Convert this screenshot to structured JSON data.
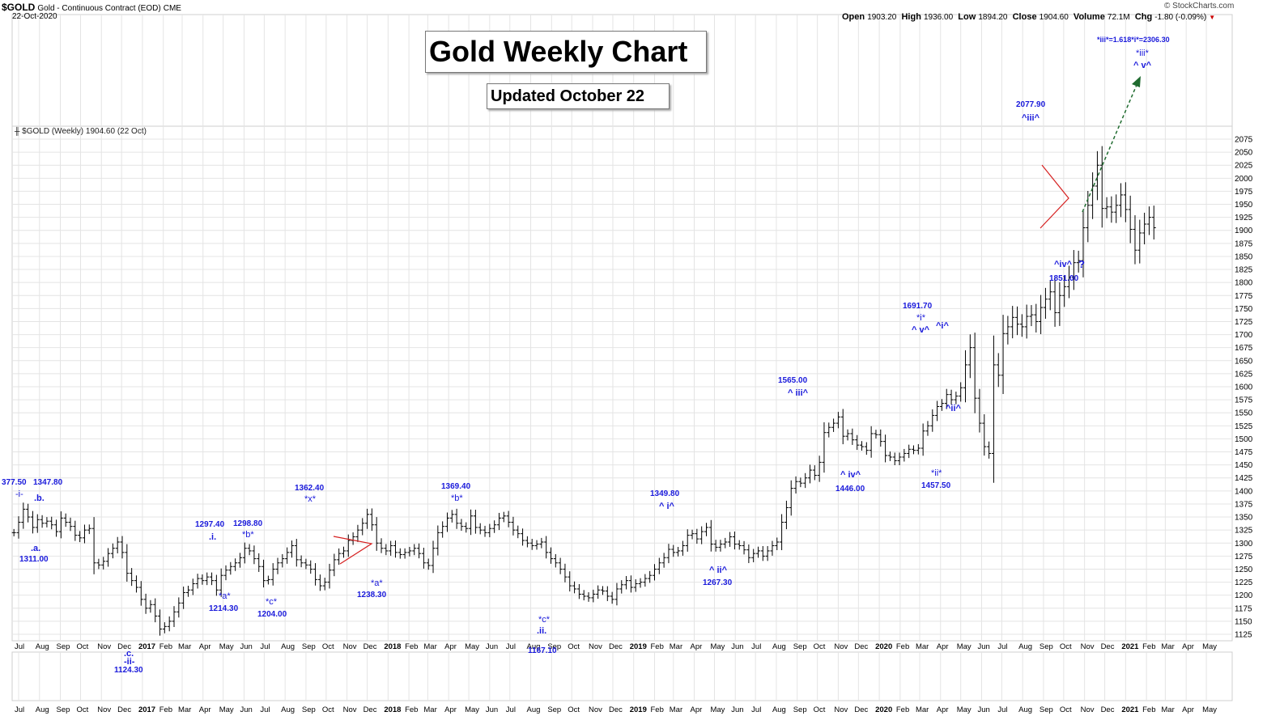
{
  "header": {
    "symbol": "$GOLD",
    "description": "Gold - Continuous Contract (EOD)",
    "exchange": "CME",
    "date": "22-Oct-2020",
    "open_label": "Open",
    "open": "1903.20",
    "high_label": "High",
    "high": "1936.00",
    "low_label": "Low",
    "low": "1894.20",
    "close_label": "Close",
    "close": "1904.60",
    "volume_label": "Volume",
    "volume": "72.1M",
    "chg_label": "Chg",
    "chg": "-1.80 (-0.09%)",
    "watermark": "© StockCharts.com",
    "legend": "$GOLD (Weekly) 1904.60 (22 Oct)"
  },
  "title_box": "Gold Weekly Chart",
  "updated_box": "Updated October 22",
  "colors": {
    "annotation": "#1a1adb",
    "bars": "#000000",
    "triangle": "#d62020",
    "projection": "#1f6b2f",
    "grid": "#e4e4e4"
  },
  "chart_data": {
    "type": "ohlc",
    "title": "Gold Weekly Chart",
    "ylim": [
      1110,
      2100
    ],
    "yticks": [
      1125,
      1150,
      1175,
      1200,
      1225,
      1250,
      1275,
      1300,
      1325,
      1350,
      1375,
      1400,
      1425,
      1450,
      1475,
      1500,
      1525,
      1550,
      1575,
      1600,
      1625,
      1650,
      1675,
      1700,
      1725,
      1750,
      1775,
      1800,
      1825,
      1850,
      1875,
      1900,
      1925,
      1950,
      1975,
      2000,
      2025,
      2050,
      2075
    ],
    "xlabels": [
      "Jul",
      "Aug",
      "Sep",
      "Oct",
      "Nov",
      "Dec",
      "2017",
      "Feb",
      "Mar",
      "Apr",
      "May",
      "Jun",
      "Jul",
      "Aug",
      "Sep",
      "Oct",
      "Nov",
      "Dec",
      "2018",
      "Feb",
      "Mar",
      "Apr",
      "May",
      "Jun",
      "Jul",
      "Aug",
      "Sep",
      "Oct",
      "Nov",
      "Dec",
      "2019",
      "Feb",
      "Mar",
      "Apr",
      "May",
      "Jun",
      "Jul",
      "Aug",
      "Sep",
      "Oct",
      "Nov",
      "Dec",
      "2020",
      "Feb",
      "Mar",
      "Apr",
      "May",
      "Jun",
      "Jul",
      "Aug",
      "Sep",
      "Oct",
      "Nov",
      "Dec",
      "2021",
      "Feb",
      "Mar",
      "Apr",
      "May"
    ],
    "x_start": "2016-07-01",
    "bars_week_start": "2016-06-24",
    "closes": [
      1320,
      1340,
      1365,
      1350,
      1330,
      1345,
      1338,
      1342,
      1335,
      1322,
      1348,
      1340,
      1332,
      1315,
      1310,
      1325,
      1328,
      1262,
      1258,
      1265,
      1280,
      1290,
      1302,
      1282,
      1242,
      1228,
      1215,
      1192,
      1175,
      1182,
      1160,
      1135,
      1140,
      1150,
      1168,
      1185,
      1205,
      1210,
      1222,
      1232,
      1228,
      1235,
      1228,
      1210,
      1238,
      1248,
      1255,
      1262,
      1272,
      1290,
      1285,
      1270,
      1255,
      1228,
      1230,
      1250,
      1262,
      1270,
      1282,
      1295,
      1268,
      1262,
      1258,
      1250,
      1230,
      1218,
      1225,
      1248,
      1268,
      1280,
      1285,
      1305,
      1312,
      1325,
      1338,
      1355,
      1335,
      1300,
      1290,
      1285,
      1295,
      1282,
      1278,
      1282,
      1285,
      1290,
      1280,
      1262,
      1257,
      1290,
      1320,
      1332,
      1348,
      1355,
      1338,
      1332,
      1328,
      1352,
      1330,
      1325,
      1320,
      1328,
      1335,
      1348,
      1352,
      1340,
      1325,
      1318,
      1305,
      1300,
      1295,
      1298,
      1302,
      1282,
      1270,
      1262,
      1250,
      1235,
      1218,
      1212,
      1202,
      1198,
      1195,
      1202,
      1210,
      1208,
      1198,
      1192,
      1212,
      1220,
      1228,
      1215,
      1222,
      1225,
      1232,
      1238,
      1250,
      1262,
      1272,
      1288,
      1282,
      1285,
      1295,
      1315,
      1318,
      1308,
      1322,
      1330,
      1298,
      1292,
      1298,
      1302,
      1312,
      1298,
      1295,
      1287,
      1272,
      1280,
      1285,
      1275,
      1285,
      1295,
      1302,
      1340,
      1368,
      1405,
      1418,
      1415,
      1425,
      1440,
      1430,
      1455,
      1512,
      1522,
      1530,
      1542,
      1505,
      1510,
      1498,
      1488,
      1485,
      1478,
      1510,
      1508,
      1495,
      1468,
      1465,
      1458,
      1465,
      1472,
      1480,
      1478,
      1482,
      1515,
      1525,
      1545,
      1562,
      1568,
      1585,
      1575,
      1582,
      1598,
      1642,
      1675,
      1578,
      1530,
      1485,
      1472,
      1642,
      1622,
      1702,
      1715,
      1733,
      1720,
      1715,
      1735,
      1738,
      1725,
      1752,
      1768,
      1782,
      1742,
      1775,
      1792,
      1810,
      1838,
      1842,
      1905,
      1948,
      1985,
      2025,
      1942,
      1945,
      1935,
      1948,
      1968,
      1940,
      1902,
      1862,
      1895,
      1912,
      1925,
      1905
    ]
  },
  "annotations": {
    "a1": "377.50",
    "a1w": "-i-",
    "a2": "1347.80",
    "a2w": ".b.",
    "a3w": ".a.",
    "a3": "1311.00",
    "a4w": ".c.",
    "a4w2": "-ii-",
    "a4": "1124.30",
    "a5": "1297.40",
    "a5w": ".i.",
    "a6w": "*a*",
    "a6": "1214.30",
    "a7": "1298.80",
    "a7w": "*b*",
    "a8w": "*c*",
    "a8": "1204.00",
    "a9": "1362.40",
    "a9w": "*x*",
    "a10w": "*a*",
    "a10": "1238.30",
    "a11": "1369.40",
    "a11w": "*b*",
    "a12w": "*c*",
    "a12w2": ".ii.",
    "a12": "1167.10",
    "a13": "1349.80",
    "a13w": "^ i^",
    "a14w": "^ ii^",
    "a14": "1267.30",
    "a15": "1565.00",
    "a15w": "^ iii^",
    "a16w": "^ iv^",
    "a16": "1446.00",
    "a17": "1691.70",
    "a17w": "*i*",
    "a17w2": "^ v^",
    "a18w": "^i^",
    "a19w": "*ii*",
    "a19": "1457.50",
    "a20w": "^ii^",
    "a21": "2077.90",
    "a21w": "^iii^",
    "a22w": "^iv^",
    "a22q": "?",
    "a22": "1851.00",
    "a23": "*iii*=1.618*i*=2306.30",
    "a23w": "*iii*",
    "a23w2": "^ v^"
  }
}
